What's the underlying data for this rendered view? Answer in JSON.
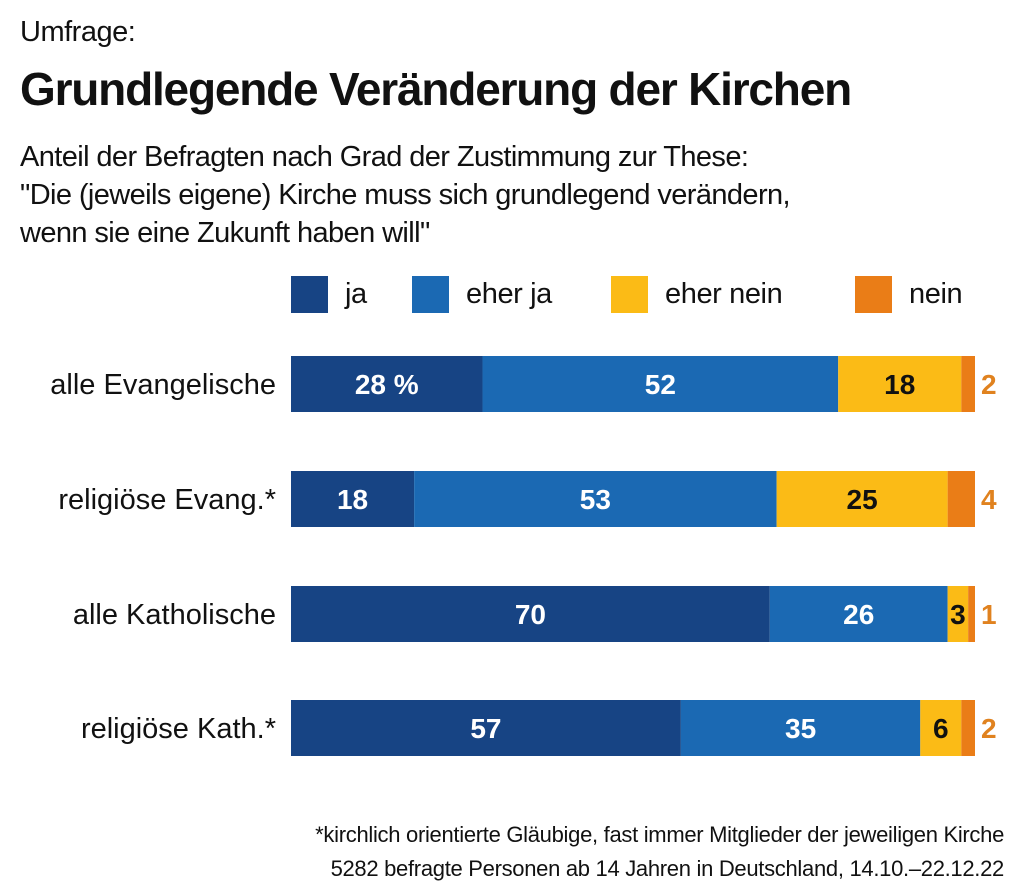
{
  "kicker": "Umfrage:",
  "chart_data": {
    "type": "bar",
    "orientation": "horizontal",
    "stacked": true,
    "title": "Grundlegende Veränderung der Kirchen",
    "subtitle": [
      "Anteil der Befragten nach Grad der Zustimmung zur These:",
      "\"Die (jeweils eigene) Kirche muss sich grundlegend verändern,",
      "wenn sie eine Zukunft haben will\""
    ],
    "unit": "%",
    "xlim": [
      0,
      100
    ],
    "grid": false,
    "legend_position": "top",
    "categories": [
      "alle Evangelische",
      "religiöse Evang.*",
      "alle Katholische",
      "religiöse Kath.*"
    ],
    "series": [
      {
        "name": "ja",
        "color": "#174484",
        "label_color": "#ffffff",
        "values": [
          28,
          18,
          70,
          57
        ]
      },
      {
        "name": "eher ja",
        "color": "#1b69b3",
        "label_color": "#ffffff",
        "values": [
          52,
          53,
          26,
          35
        ]
      },
      {
        "name": "eher nein",
        "color": "#fbbb16",
        "label_color": "#111111",
        "values": [
          18,
          25,
          3,
          6
        ]
      },
      {
        "name": "nein",
        "color": "#ea7d17",
        "label_color": "#e0821f",
        "values": [
          2,
          4,
          1,
          2
        ]
      }
    ],
    "first_label_suffix": " %"
  },
  "footnotes": [
    "*kirchlich orientierte Gläubige, fast immer Mitglieder der jeweiligen Kirche",
    "5282 befragte Personen ab 14 Jahren in Deutschland, 14.10.–22.12.22"
  ]
}
